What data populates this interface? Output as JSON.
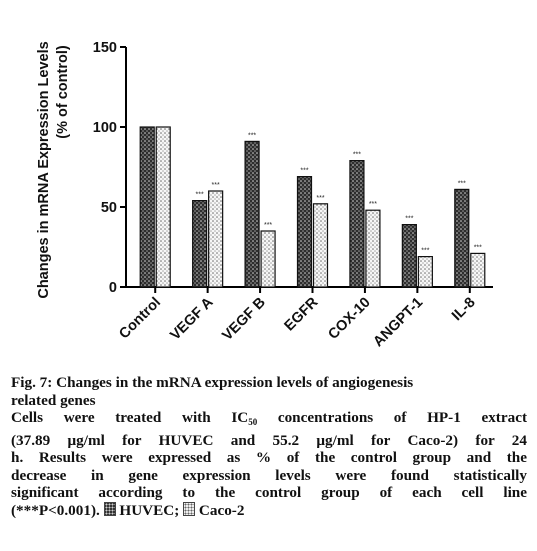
{
  "chart_data": {
    "type": "bar",
    "ylabel_line1": "Changes in mRNA Expression Levels",
    "ylabel_line2": "(% of control)",
    "xlabel": "",
    "ylim": [
      0,
      150
    ],
    "yticks": [
      "0",
      "50",
      "100",
      "150"
    ],
    "categories": [
      "Control",
      "VEGF A",
      "VEGF B",
      "EGFR",
      "COX-10",
      "ANGPT-1",
      "IL-8"
    ],
    "series": [
      {
        "name": "HUVEC",
        "color": "#3a3a3a",
        "values": [
          100,
          54,
          91,
          69,
          79,
          39,
          61
        ],
        "annotations": [
          "",
          "***",
          "***",
          "***",
          "***",
          "***",
          "***"
        ]
      },
      {
        "name": "Caco-2",
        "color": "#f2f2f2",
        "values": [
          100,
          60,
          35,
          52,
          48,
          19,
          21
        ],
        "annotations": [
          "",
          "***",
          "***",
          "***",
          "***",
          "***",
          "***"
        ]
      }
    ],
    "grid": false,
    "legend": "none"
  },
  "caption": {
    "title_line1": "Fig. 7: Changes in the mRNA expression levels of angiogenesis",
    "title_line2": "related genes",
    "body_line1_a": "Cells were treated with IC",
    "body_line1_sub": "50",
    "body_line1_b": " concentrations of HP-1 extract",
    "body_line2": "(37.89 μg/ml for HUVEC and 55.2 μg/ml for Caco-2) for 24",
    "body_line3": "h. Results were expressed as % of the control group and the",
    "body_line4": "decrease in gene expression levels were found statistically",
    "body_line5": "significant according to the control group of each cell line",
    "body_line6_a": "(***P<0.001).",
    "legend_huvec": "HUVEC;",
    "legend_caco": "Caco-2"
  }
}
